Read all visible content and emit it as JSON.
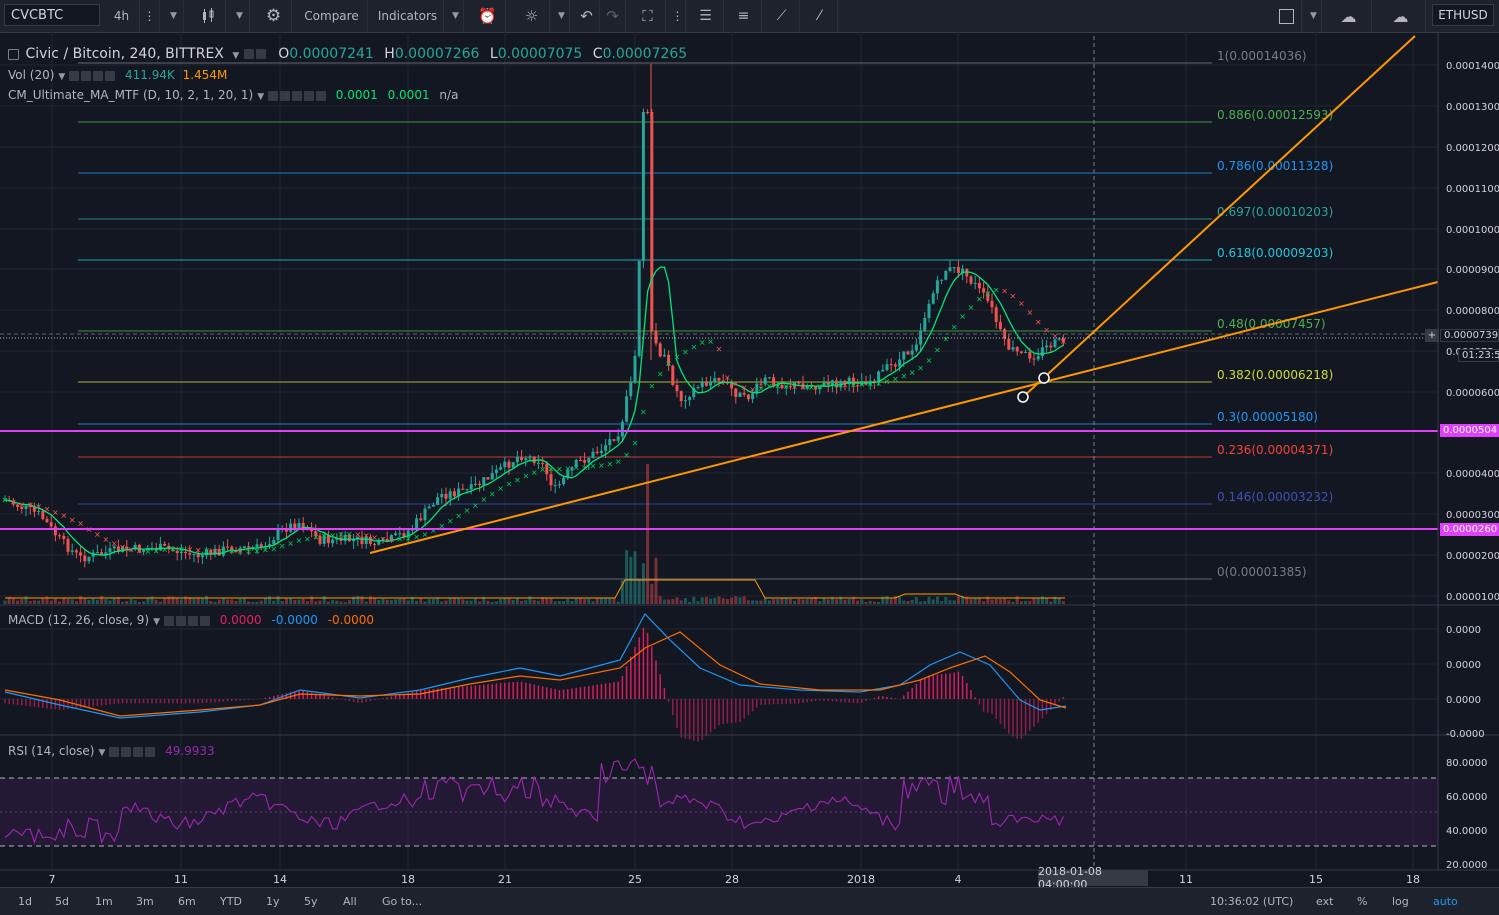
{
  "toolbar": {
    "symbol": "CVCBTC",
    "interval": "4h",
    "compare": "Compare",
    "indicators": "Indicators",
    "right_symbol": "ETHUSD"
  },
  "legend": {
    "title": "Civic / Bitcoin, 240, BITTREX",
    "o_label": "O",
    "o_value": "0.00007241",
    "h_label": "H",
    "h_value": "0.00007266",
    "l_label": "L",
    "l_value": "0.00007075",
    "c_label": "C",
    "c_value": "0.00007265",
    "vol_name": "Vol (20)",
    "vol_val1": "411.94K",
    "vol_val2": "1.454M",
    "ma_name": "CM_Ultimate_MA_MTF (D, 10, 2, 1, 20, 1)",
    "ma_val1": "0.0001",
    "ma_val2": "0.0001",
    "ma_val3": "n/a",
    "macd_name": "MACD (12, 26, close, 9)",
    "macd_val1": "0.0000",
    "macd_val2": "-0.0000",
    "macd_val3": "-0.0000",
    "rsi_name": "RSI (14, close)",
    "rsi_val": "49.9933"
  },
  "fib_levels": [
    {
      "label": "1(0.00014036)",
      "color": "#787b86"
    },
    {
      "label": "0.886(0.00012593)",
      "color": "#4caf50"
    },
    {
      "label": "0.786(0.00011328)",
      "color": "#2196f3"
    },
    {
      "label": "0.697(0.00010203)",
      "color": "#26a69a"
    },
    {
      "label": "0.618(0.00009203)",
      "color": "#26c6da"
    },
    {
      "label": "0.48(0.00007457)",
      "color": "#4caf50"
    },
    {
      "label": "0.382(0.00006218)",
      "color": "#cddc39"
    },
    {
      "label": "0.3(0.00005180)",
      "color": "#2196f3"
    },
    {
      "label": "0.236(0.00004371)",
      "color": "#f44336"
    },
    {
      "label": "0.146(0.00003232)",
      "color": "#3f51b5"
    },
    {
      "label": "0(0.00001385)",
      "color": "#787b86"
    }
  ],
  "price_axis": [
    "0.0001400",
    "0.0001300",
    "0.0001200",
    "0.0001100",
    "0.0001000",
    "0.0000900",
    "0.0000800",
    "0.000073",
    "0.0000600",
    "0.0000400",
    "0.0000300",
    "0.0000200",
    "0.0000100"
  ],
  "price_tags": {
    "current": "0.0000739",
    "countdown": "01:23:5",
    "upper_line": "0.0000504",
    "lower_line": "0.0000260"
  },
  "macd_axis": [
    "0.0000",
    "0.0000",
    "0.0000",
    "-0.0000"
  ],
  "rsi_axis": [
    "80.0000",
    "60.0000",
    "40.0000",
    "20.0000"
  ],
  "time_axis": [
    "7",
    "11",
    "14",
    "18",
    "21",
    "25",
    "28",
    "2018",
    "4",
    "11",
    "15",
    "18"
  ],
  "time_cursor": "2018-01-08 04:00:00",
  "bottom": {
    "ranges": [
      "1d",
      "5d",
      "1m",
      "3m",
      "6m",
      "YTD",
      "1y",
      "5y",
      "All"
    ],
    "goto": "Go to...",
    "clock": "10:36:02 (UTC)",
    "ext": "ext",
    "percent": "%",
    "log": "log",
    "auto": "auto"
  },
  "colors": {
    "up": "#26a69a",
    "down": "#ef5350",
    "magenta": "#e040fb",
    "orange": "#ff9800",
    "macd": "#2196f3",
    "signal": "#ff6d00",
    "rsi": "#9c27b0"
  }
}
